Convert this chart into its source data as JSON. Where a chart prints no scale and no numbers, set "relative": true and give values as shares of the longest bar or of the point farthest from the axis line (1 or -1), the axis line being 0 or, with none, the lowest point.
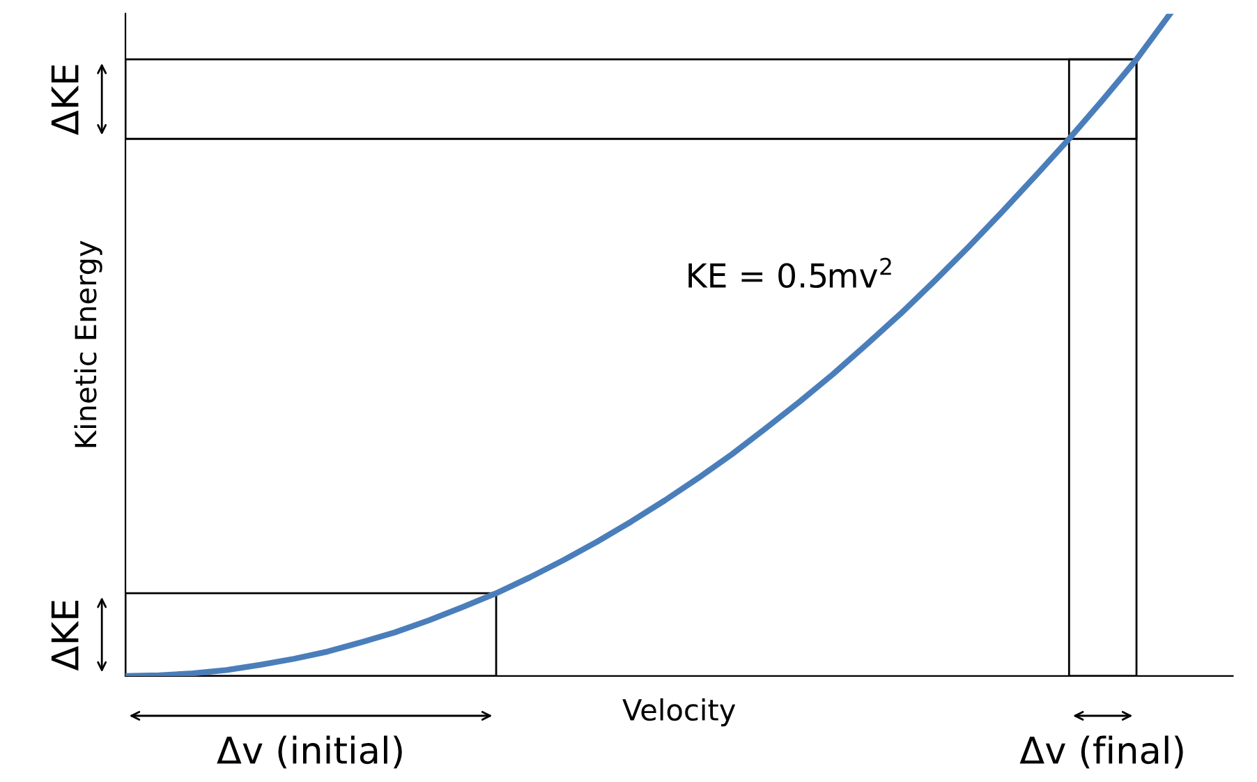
{
  "chart_data": {
    "type": "line",
    "relative": true,
    "xlabel": "Velocity",
    "ylabel": "Kinetic Energy",
    "marker": "none",
    "line_style": "solid",
    "categories": [
      null,
      null,
      null,
      null,
      null,
      null,
      null,
      null,
      null,
      null,
      null,
      null,
      null,
      null,
      null,
      null,
      null,
      null,
      null,
      null,
      null,
      null,
      null,
      null,
      null,
      null,
      null,
      null,
      null,
      null,
      null,
      null
    ],
    "annotations": [
      "ΔKE",
      "ΔKE",
      "Δv (initial)",
      "Δv (final)",
      "KE = 0.5mv$^{2}$"
    ],
    "series": [
      {
        "color": "#4a7ebb",
        "values": [
          0,
          0.001,
          0.004,
          0.009,
          0.017,
          0.026,
          0.037,
          0.051,
          0.066,
          0.084,
          0.104,
          0.125,
          0.149,
          0.175,
          0.203,
          0.233,
          0.265,
          0.299,
          0.335,
          0.374,
          0.414,
          0.456,
          0.501,
          0.547,
          0.596,
          0.647,
          0.7,
          0.755,
          0.811,
          0.87,
          0.931,
          1.0
        ]
      }
    ]
  }
}
